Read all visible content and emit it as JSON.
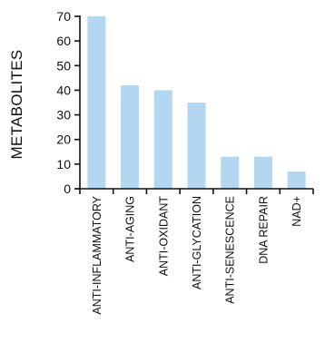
{
  "chart_data": {
    "type": "bar",
    "title": "",
    "xlabel": "",
    "ylabel": "METABOLITES",
    "categories": [
      "ANTI-INFLAMMATORY",
      "ANTI-AGING",
      "ANTI-OXIDANT",
      "ANTI-GLYCATION",
      "ANTI-SENESCENCE",
      "DNA REPAIR",
      "NAD+"
    ],
    "values": [
      70,
      42,
      40,
      35,
      13,
      13,
      7
    ],
    "ylim": [
      0,
      70
    ],
    "yticks": [
      0,
      10,
      20,
      30,
      40,
      50,
      60,
      70
    ],
    "grid": false,
    "colors": {
      "bar": "#b3d7f0",
      "axis": "#111111"
    }
  }
}
